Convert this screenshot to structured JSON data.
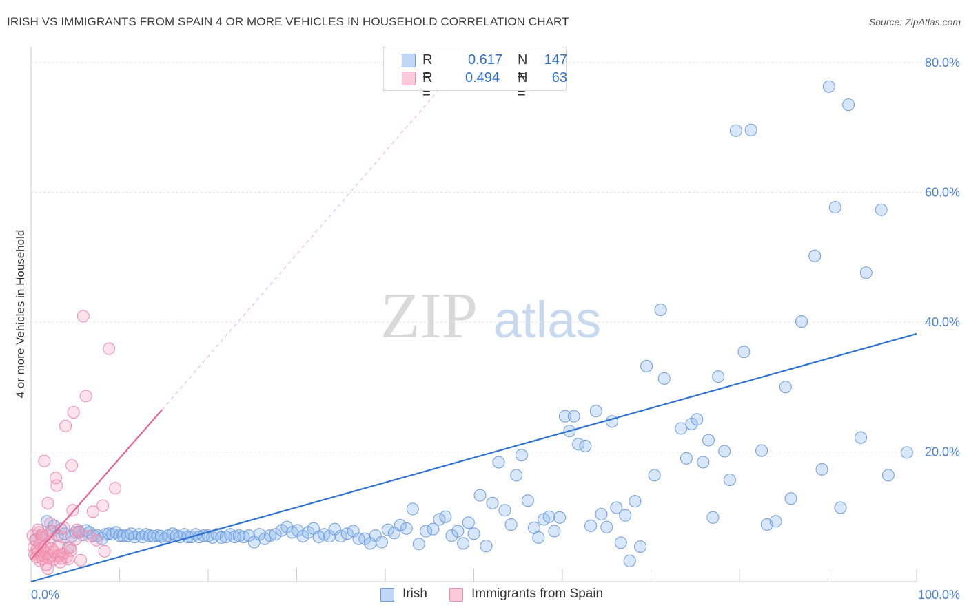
{
  "header": {
    "title": "IRISH VS IMMIGRANTS FROM SPAIN 4 OR MORE VEHICLES IN HOUSEHOLD CORRELATION CHART",
    "source": "Source: ZipAtlas.com"
  },
  "watermark": {
    "part1": "ZIP",
    "part2": "atlas"
  },
  "legend": {
    "rows": [
      {
        "r_label": "R =",
        "r_value": "0.617",
        "n_label": "N =",
        "n_value": "147",
        "color": "#7fa8e8"
      },
      {
        "r_label": "R =",
        "r_value": "0.494",
        "n_label": "N =",
        "n_value": "63",
        "color": "#f29cb8"
      }
    ]
  },
  "bottom_legend": {
    "items": [
      {
        "label": "Irish",
        "color": "#7fa8e8"
      },
      {
        "label": "Immigrants from Spain",
        "color": "#f29cb8"
      }
    ]
  },
  "colors": {
    "blue_fill": "rgba(141,182,236,0.35)",
    "blue_stroke": "#6b9be0",
    "blue_line": "#2e72d2",
    "pink_fill": "rgba(244,160,188,0.30)",
    "pink_stroke": "#ee8cab",
    "pink_line": "#e8628f",
    "grid": "#e2e2e2",
    "tick_label": "#4a7fd0"
  },
  "chart_data": {
    "type": "scatter",
    "title": "IRISH VS IMMIGRANTS FROM SPAIN 4 OR MORE VEHICLES IN HOUSEHOLD CORRELATION CHART",
    "xlabel": "",
    "ylabel": "4 or more Vehicles in Household",
    "xlim": [
      0,
      100
    ],
    "ylim": [
      0,
      82
    ],
    "x_tick_labels": [
      {
        "value": 0,
        "label": "0.0%"
      },
      {
        "value": 100,
        "label": "100.0%"
      }
    ],
    "y_tick_labels": [
      {
        "value": 20,
        "label": "20.0%"
      },
      {
        "value": 40,
        "label": "40.0%"
      },
      {
        "value": 60,
        "label": "60.0%"
      },
      {
        "value": 80,
        "label": "80.0%"
      }
    ],
    "x_minor_ticks": [
      10,
      20,
      30,
      40,
      50,
      60,
      70,
      80,
      90,
      100
    ],
    "grid": true,
    "legend_position": "top-center",
    "series": [
      {
        "name": "Irish",
        "trendline": {
          "x0": 0,
          "y0": 0,
          "x1": 100,
          "y1": 38.2,
          "dashed_extension": false
        },
        "points": [
          [
            0.5,
            6.5
          ],
          [
            1.2,
            7.2
          ],
          [
            1.8,
            9.3
          ],
          [
            2.2,
            7.8
          ],
          [
            2.6,
            8.6
          ],
          [
            3.0,
            7.1
          ],
          [
            3.4,
            8.1
          ],
          [
            3.8,
            7.4
          ],
          [
            4.2,
            5.2
          ],
          [
            4.6,
            7.0
          ],
          [
            5.0,
            7.6
          ],
          [
            5.4,
            7.7
          ],
          [
            5.8,
            7.2
          ],
          [
            6.2,
            7.9
          ],
          [
            6.6,
            7.6
          ],
          [
            7.0,
            7.1
          ],
          [
            7.5,
            7.1
          ],
          [
            8.0,
            6.6
          ],
          [
            8.4,
            7.3
          ],
          [
            8.8,
            7.4
          ],
          [
            9.2,
            7.3
          ],
          [
            9.6,
            7.6
          ],
          [
            10.0,
            7.1
          ],
          [
            10.4,
            7.1
          ],
          [
            10.9,
            7.1
          ],
          [
            11.3,
            7.4
          ],
          [
            11.7,
            6.9
          ],
          [
            12.2,
            7.3
          ],
          [
            12.6,
            6.9
          ],
          [
            13.0,
            7.3
          ],
          [
            13.4,
            7.1
          ],
          [
            13.8,
            7.0
          ],
          [
            14.3,
            7.1
          ],
          [
            14.7,
            7.0
          ],
          [
            15.1,
            6.6
          ],
          [
            15.5,
            7.1
          ],
          [
            16.0,
            7.4
          ],
          [
            16.4,
            7.1
          ],
          [
            16.8,
            6.9
          ],
          [
            17.3,
            7.3
          ],
          [
            17.7,
            6.9
          ],
          [
            18.1,
            6.9
          ],
          [
            18.6,
            7.3
          ],
          [
            19.0,
            6.9
          ],
          [
            19.5,
            7.1
          ],
          [
            20.0,
            7.1
          ],
          [
            20.5,
            6.8
          ],
          [
            21.0,
            7.3
          ],
          [
            21.5,
            6.8
          ],
          [
            22.0,
            6.9
          ],
          [
            22.5,
            7.3
          ],
          [
            23.0,
            6.9
          ],
          [
            23.5,
            7.1
          ],
          [
            24.0,
            6.9
          ],
          [
            24.6,
            7.1
          ],
          [
            25.2,
            6.1
          ],
          [
            25.8,
            7.3
          ],
          [
            26.4,
            6.6
          ],
          [
            27.0,
            7.1
          ],
          [
            27.6,
            7.3
          ],
          [
            28.3,
            7.9
          ],
          [
            28.9,
            8.4
          ],
          [
            29.5,
            7.6
          ],
          [
            30.1,
            7.9
          ],
          [
            30.7,
            7.0
          ],
          [
            31.3,
            7.6
          ],
          [
            31.9,
            8.2
          ],
          [
            32.5,
            6.9
          ],
          [
            33.1,
            7.3
          ],
          [
            33.7,
            7.0
          ],
          [
            34.3,
            8.1
          ],
          [
            35.0,
            7.0
          ],
          [
            35.7,
            7.4
          ],
          [
            36.4,
            7.8
          ],
          [
            37.0,
            6.6
          ],
          [
            37.7,
            6.6
          ],
          [
            38.3,
            5.9
          ],
          [
            38.9,
            7.1
          ],
          [
            39.6,
            6.1
          ],
          [
            40.3,
            8.0
          ],
          [
            41.0,
            7.5
          ],
          [
            41.7,
            8.7
          ],
          [
            42.4,
            8.2
          ],
          [
            43.1,
            11.2
          ],
          [
            43.8,
            5.8
          ],
          [
            44.6,
            7.8
          ],
          [
            45.4,
            8.1
          ],
          [
            46.1,
            9.6
          ],
          [
            46.8,
            10.0
          ],
          [
            47.5,
            7.1
          ],
          [
            48.2,
            7.8
          ],
          [
            48.8,
            5.9
          ],
          [
            49.4,
            9.1
          ],
          [
            50.0,
            7.4
          ],
          [
            50.7,
            13.3
          ],
          [
            51.4,
            5.5
          ],
          [
            52.1,
            12.1
          ],
          [
            52.8,
            18.4
          ],
          [
            53.5,
            11.0
          ],
          [
            54.2,
            8.8
          ],
          [
            54.8,
            16.4
          ],
          [
            55.4,
            19.5
          ],
          [
            56.1,
            12.5
          ],
          [
            56.8,
            8.3
          ],
          [
            57.3,
            6.8
          ],
          [
            57.9,
            9.6
          ],
          [
            58.5,
            10.0
          ],
          [
            59.1,
            7.8
          ],
          [
            59.7,
            9.9
          ],
          [
            60.3,
            25.5
          ],
          [
            60.8,
            23.2
          ],
          [
            61.3,
            25.5
          ],
          [
            61.8,
            21.2
          ],
          [
            62.6,
            20.9
          ],
          [
            63.2,
            8.6
          ],
          [
            63.8,
            26.3
          ],
          [
            64.4,
            10.4
          ],
          [
            65.0,
            8.4
          ],
          [
            65.6,
            24.7
          ],
          [
            66.1,
            11.4
          ],
          [
            66.6,
            6.0
          ],
          [
            67.1,
            10.2
          ],
          [
            67.6,
            3.2
          ],
          [
            68.2,
            12.4
          ],
          [
            68.8,
            5.4
          ],
          [
            69.5,
            33.2
          ],
          [
            70.4,
            16.4
          ],
          [
            71.1,
            41.9
          ],
          [
            71.5,
            31.3
          ],
          [
            73.4,
            23.6
          ],
          [
            74.0,
            19.0
          ],
          [
            74.6,
            24.3
          ],
          [
            75.2,
            25.0
          ],
          [
            75.9,
            18.4
          ],
          [
            76.5,
            21.8
          ],
          [
            77.0,
            9.9
          ],
          [
            77.6,
            31.6
          ],
          [
            78.3,
            20.1
          ],
          [
            78.9,
            15.7
          ],
          [
            79.6,
            69.5
          ],
          [
            80.5,
            35.4
          ],
          [
            81.3,
            69.6
          ],
          [
            82.5,
            20.2
          ],
          [
            83.1,
            8.8
          ],
          [
            84.1,
            9.3
          ],
          [
            85.2,
            30.0
          ],
          [
            85.8,
            12.8
          ],
          [
            87.0,
            40.1
          ],
          [
            88.5,
            50.2
          ],
          [
            89.3,
            17.3
          ],
          [
            90.1,
            76.3
          ],
          [
            90.8,
            57.7
          ],
          [
            91.4,
            11.4
          ],
          [
            92.3,
            73.5
          ],
          [
            93.7,
            22.2
          ],
          [
            94.3,
            47.6
          ],
          [
            96.0,
            57.3
          ],
          [
            96.8,
            16.4
          ],
          [
            98.9,
            19.9
          ]
        ]
      },
      {
        "name": "Immigrants from Spain",
        "trendline": {
          "x0": 0,
          "y0": 3.4,
          "x1": 14.8,
          "y1": 26.5,
          "dashed_extension": true,
          "dash_to_x": 47.2,
          "dash_to_y": 77.6
        },
        "points": [
          [
            0.2,
            7.1
          ],
          [
            0.3,
            5.3
          ],
          [
            0.4,
            4.2
          ],
          [
            0.5,
            6.4
          ],
          [
            0.6,
            3.8
          ],
          [
            0.7,
            5.0
          ],
          [
            0.8,
            4.6
          ],
          [
            0.9,
            7.6
          ],
          [
            1.0,
            3.2
          ],
          [
            1.0,
            5.8
          ],
          [
            1.1,
            4.1
          ],
          [
            1.2,
            6.8
          ],
          [
            1.3,
            3.5
          ],
          [
            1.4,
            4.9
          ],
          [
            1.5,
            3.9
          ],
          [
            1.5,
            18.6
          ],
          [
            1.6,
            5.4
          ],
          [
            1.7,
            7.1
          ],
          [
            1.8,
            4.4
          ],
          [
            1.9,
            2.0
          ],
          [
            1.9,
            12.1
          ],
          [
            2.0,
            3.6
          ],
          [
            2.1,
            6.2
          ],
          [
            2.2,
            4.0
          ],
          [
            2.3,
            5.1
          ],
          [
            2.4,
            7.8
          ],
          [
            2.5,
            3.4
          ],
          [
            2.6,
            4.6
          ],
          [
            2.8,
            16.0
          ],
          [
            2.9,
            14.8
          ],
          [
            3.0,
            3.9
          ],
          [
            3.1,
            5.6
          ],
          [
            3.2,
            4.1
          ],
          [
            3.4,
            3.6
          ],
          [
            3.5,
            6.9
          ],
          [
            3.6,
            4.3
          ],
          [
            3.7,
            8.3
          ],
          [
            3.9,
            24.0
          ],
          [
            4.0,
            3.8
          ],
          [
            4.2,
            3.5
          ],
          [
            4.4,
            5.2
          ],
          [
            4.5,
            4.8
          ],
          [
            4.6,
            17.9
          ],
          [
            4.7,
            11.0
          ],
          [
            4.8,
            26.1
          ],
          [
            5.0,
            6.5
          ],
          [
            5.2,
            8.0
          ],
          [
            5.4,
            7.6
          ],
          [
            5.6,
            3.3
          ],
          [
            5.9,
            40.9
          ],
          [
            6.2,
            28.6
          ],
          [
            6.6,
            7.0
          ],
          [
            7.0,
            10.8
          ],
          [
            7.4,
            6.4
          ],
          [
            8.1,
            11.7
          ],
          [
            8.3,
            4.7
          ],
          [
            8.8,
            35.9
          ],
          [
            9.5,
            14.4
          ],
          [
            0.8,
            8.0
          ],
          [
            1.3,
            7.2
          ],
          [
            2.2,
            9.0
          ],
          [
            3.3,
            3.0
          ],
          [
            1.7,
            2.6
          ]
        ]
      }
    ]
  }
}
